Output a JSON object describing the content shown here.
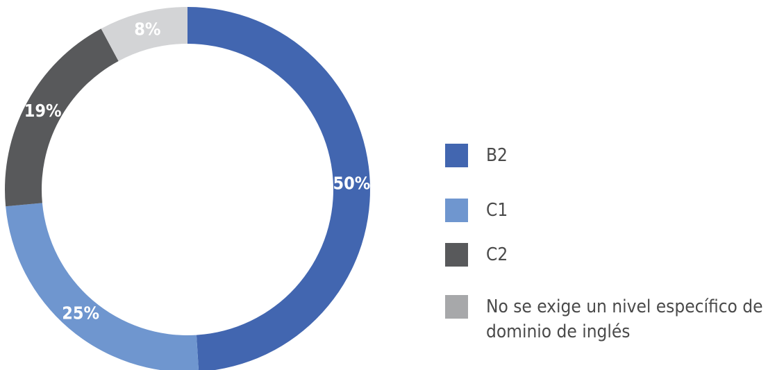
{
  "chart_data": {
    "type": "donut",
    "categories": [
      "B2",
      "C1",
      "C2",
      "No se exige un nivel específico de dominio de inglés"
    ],
    "values": [
      50,
      25,
      19,
      8
    ],
    "value_labels": [
      "50%",
      "25%",
      "19%",
      "8%"
    ],
    "colors": [
      "#4266b0",
      "#6f96cf",
      "#58595b",
      "#d3d4d6"
    ],
    "legend_colors": [
      "#4266b0",
      "#6f96cf",
      "#58595b",
      "#a7a8aa"
    ]
  }
}
